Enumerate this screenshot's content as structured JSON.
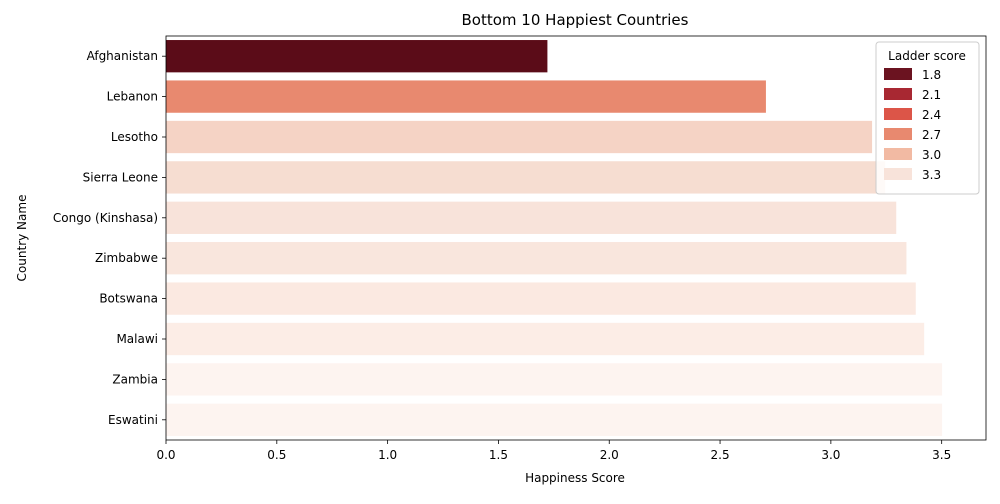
{
  "chart_data": {
    "type": "bar",
    "orientation": "horizontal",
    "title": "Bottom 10 Happiest Countries",
    "xlabel": "Happiness Score",
    "ylabel": "Country Name",
    "xlim": [
      0,
      3.7
    ],
    "xticks": [
      "0.0",
      "0.5",
      "1.0",
      "1.5",
      "2.0",
      "2.5",
      "3.0",
      "3.5"
    ],
    "xtick_values": [
      0,
      0.5,
      1.0,
      1.5,
      2.0,
      2.5,
      3.0,
      3.5
    ],
    "categories": [
      "Afghanistan",
      "Lebanon",
      "Lesotho",
      "Sierra Leone",
      "Congo (Kinshasa)",
      "Zimbabwe",
      "Botswana",
      "Malawi",
      "Zambia",
      "Eswatini"
    ],
    "values": [
      1.721,
      2.707,
      3.186,
      3.245,
      3.295,
      3.341,
      3.383,
      3.421,
      3.502,
      3.502
    ],
    "bar_colors": [
      "#5b0c18",
      "#e8896f",
      "#f5d3c5",
      "#f6ddd1",
      "#f8e3da",
      "#f9e6dd",
      "#fbe9e1",
      "#fcede6",
      "#fdf4f0",
      "#fdf4f0"
    ],
    "grid": false,
    "legend": {
      "title": "Ladder score",
      "position": "top-right",
      "entries": [
        {
          "label": "1.8",
          "color": "#6b1320"
        },
        {
          "label": "2.1",
          "color": "#a82832"
        },
        {
          "label": "2.4",
          "color": "#dc5548"
        },
        {
          "label": "2.7",
          "color": "#e8896f"
        },
        {
          "label": "3.0",
          "color": "#f2baa3"
        },
        {
          "label": "3.3",
          "color": "#f8e3da"
        }
      ]
    }
  }
}
